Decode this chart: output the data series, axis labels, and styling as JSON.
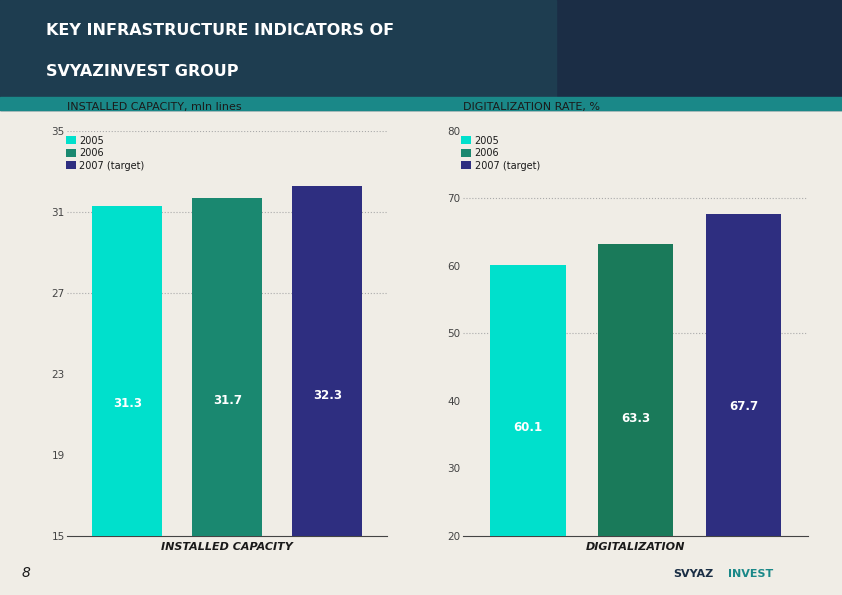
{
  "title_line1": "KEY INFRASTRUCTURE INDICATORS OF",
  "title_line2": "SVYAZINVEST GROUP",
  "slide_bg_color": "#f0ede6",
  "header_dark_color": "#1a2e45",
  "header_teal_color": "#1a7a7a",
  "left_chart": {
    "subtitle": "INSTALLED CAPACITY, mln lines",
    "xlabel": "INSTALLED CAPACITY",
    "categories": [
      "2005",
      "2006",
      "2007 (target)"
    ],
    "values": [
      31.3,
      31.7,
      32.3
    ],
    "colors": [
      "#00e0cc",
      "#1a8870",
      "#2e2e80"
    ],
    "ylim": [
      15,
      35
    ],
    "yticks": [
      15,
      19,
      23,
      27,
      31,
      35
    ],
    "bar_labels": [
      "31.3",
      "31.7",
      "32.3"
    ],
    "dotted_lines": [
      35,
      31,
      27
    ]
  },
  "right_chart": {
    "subtitle": "DIGITALIZATION RATE, %",
    "xlabel": "DIGITALIZATION",
    "categories": [
      "2005",
      "2006",
      "2007 (target)"
    ],
    "values": [
      60.1,
      63.3,
      67.7
    ],
    "colors": [
      "#00e0cc",
      "#1a7a5a",
      "#2e2e80"
    ],
    "ylim": [
      20,
      80
    ],
    "yticks": [
      20,
      30,
      40,
      50,
      60,
      70,
      80
    ],
    "bar_labels": [
      "60.1",
      "63.3",
      "67.7"
    ],
    "dotted_lines": [
      70,
      50
    ]
  },
  "legend_labels": [
    "2005",
    "2006",
    "2007 (target)"
  ],
  "legend_colors": [
    "#00e0cc",
    "#1a8870",
    "#2e2e80"
  ],
  "page_number": "8"
}
